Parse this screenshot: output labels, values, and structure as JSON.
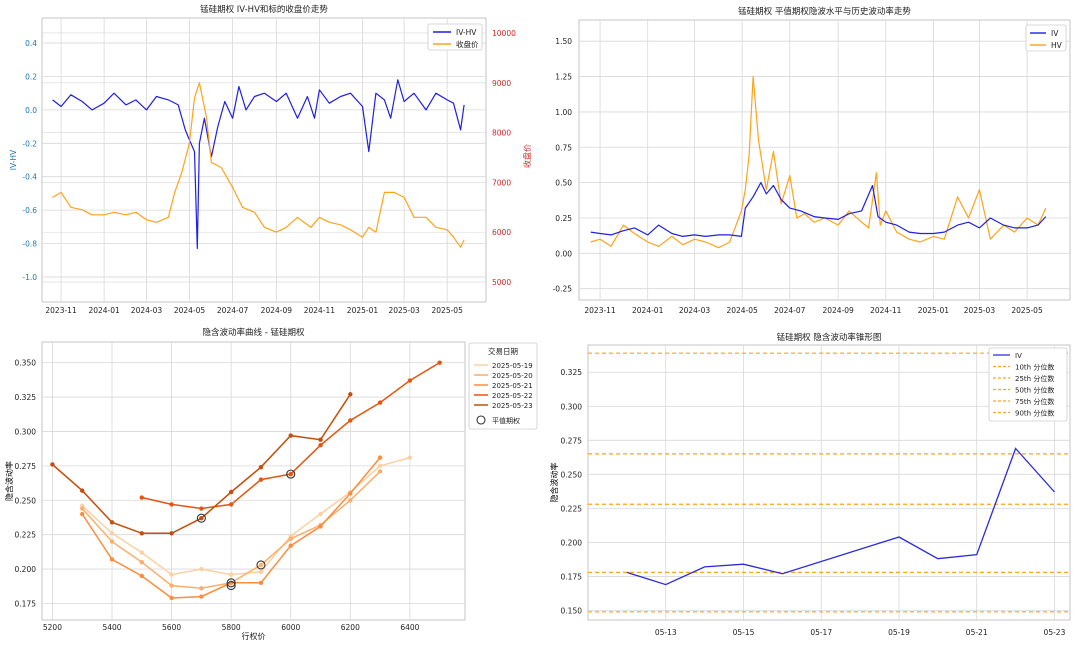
{
  "colors": {
    "blue": "#1f1fe6",
    "orange": "#ffa31a",
    "red_axis": "#d62728",
    "blue_axis": "#1f77b4",
    "grid": "#d8d8d8",
    "iv_line": "#2a2ae0",
    "pct_line": "#ffa31a",
    "date_colors": [
      "#fdd0a2",
      "#fdae6b",
      "#fd8d3c",
      "#e6550d",
      "#c44e0a"
    ]
  },
  "chart_data": [
    {
      "type": "line",
      "title": "锰硅期权 IV-HV和标的收盘价走势",
      "ylabel": "IV-HV",
      "ylabel_right": "收盘价",
      "xlim": [
        "2023-10-05",
        "2025-06-25"
      ],
      "ylim": [
        -1.15,
        0.55
      ],
      "ylim_right": [
        4600,
        10300
      ],
      "xticks": [
        "2023-11",
        "2024-01",
        "2024-03",
        "2024-05",
        "2024-07",
        "2024-09",
        "2024-11",
        "2025-01",
        "2025-03",
        "2025-05"
      ],
      "yticks": [
        "-1.0",
        "-0.8",
        "-0.6",
        "-0.4",
        "-0.2",
        "0.0",
        "0.2",
        "0.4"
      ],
      "yticks_right": [
        "5000",
        "6000",
        "7000",
        "8000",
        "9000",
        "10000"
      ],
      "legend": [
        "IV-HV",
        "收盘价"
      ],
      "series": [
        {
          "name": "IV-HV",
          "axis": "left",
          "x": [
            "2023-10-20",
            "2023-11-01",
            "2023-11-15",
            "2023-12-01",
            "2023-12-15",
            "2024-01-01",
            "2024-01-15",
            "2024-02-01",
            "2024-02-15",
            "2024-03-01",
            "2024-03-15",
            "2024-04-01",
            "2024-04-15",
            "2024-04-25",
            "2024-05-01",
            "2024-05-08",
            "2024-05-12",
            "2024-05-15",
            "2024-05-22",
            "2024-06-01",
            "2024-06-10",
            "2024-06-20",
            "2024-07-01",
            "2024-07-10",
            "2024-07-20",
            "2024-08-01",
            "2024-08-15",
            "2024-09-01",
            "2024-09-15",
            "2024-10-01",
            "2024-10-15",
            "2024-10-25",
            "2024-11-01",
            "2024-11-15",
            "2024-12-01",
            "2024-12-15",
            "2025-01-01",
            "2025-01-10",
            "2025-01-20",
            "2025-02-01",
            "2025-02-10",
            "2025-02-20",
            "2025-03-01",
            "2025-03-15",
            "2025-04-01",
            "2025-04-15",
            "2025-05-01",
            "2025-05-10",
            "2025-05-20",
            "2025-05-25"
          ],
          "y": [
            0.06,
            0.02,
            0.09,
            0.05,
            0.0,
            0.04,
            0.1,
            0.03,
            0.06,
            0.0,
            0.08,
            0.06,
            0.03,
            -0.12,
            -0.18,
            -0.25,
            -0.83,
            -0.2,
            -0.05,
            -0.28,
            -0.1,
            0.05,
            -0.05,
            0.14,
            0.0,
            0.08,
            0.1,
            0.05,
            0.1,
            -0.05,
            0.08,
            -0.05,
            0.12,
            0.04,
            0.08,
            0.1,
            0.02,
            -0.25,
            0.1,
            0.06,
            -0.05,
            0.18,
            0.05,
            0.1,
            0.0,
            0.1,
            0.06,
            0.04,
            -0.12,
            0.03
          ]
        },
        {
          "name": "收盘价",
          "axis": "right",
          "x": [
            "2023-10-20",
            "2023-11-01",
            "2023-11-15",
            "2023-12-01",
            "2023-12-15",
            "2024-01-01",
            "2024-01-15",
            "2024-02-01",
            "2024-02-15",
            "2024-03-01",
            "2024-03-15",
            "2024-04-01",
            "2024-04-10",
            "2024-04-20",
            "2024-05-01",
            "2024-05-08",
            "2024-05-15",
            "2024-05-25",
            "2024-06-01",
            "2024-06-15",
            "2024-07-01",
            "2024-07-15",
            "2024-08-01",
            "2024-08-15",
            "2024-09-01",
            "2024-09-15",
            "2024-10-01",
            "2024-10-10",
            "2024-10-20",
            "2024-11-01",
            "2024-11-15",
            "2024-12-01",
            "2024-12-15",
            "2025-01-01",
            "2025-01-10",
            "2025-01-20",
            "2025-02-01",
            "2025-02-15",
            "2025-03-01",
            "2025-03-15",
            "2025-04-01",
            "2025-04-15",
            "2025-05-01",
            "2025-05-10",
            "2025-05-20",
            "2025-05-25"
          ],
          "y": [
            6700,
            6800,
            6500,
            6450,
            6350,
            6350,
            6400,
            6350,
            6400,
            6250,
            6200,
            6300,
            6800,
            7200,
            7800,
            8700,
            9000,
            8300,
            7400,
            7300,
            6900,
            6500,
            6400,
            6100,
            6000,
            6100,
            6300,
            6200,
            6100,
            6300,
            6200,
            6150,
            6050,
            5900,
            6100,
            6000,
            6800,
            6800,
            6700,
            6300,
            6300,
            6100,
            6050,
            5900,
            5700,
            5850
          ]
        }
      ]
    },
    {
      "type": "line",
      "title": "锰硅期权 平值期权隐波水平与历史波动率走势",
      "xlim": [
        "2023-10-05",
        "2025-06-25"
      ],
      "ylim": [
        -0.33,
        1.65
      ],
      "xticks": [
        "2023-11",
        "2024-01",
        "2024-03",
        "2024-05",
        "2024-07",
        "2024-09",
        "2024-11",
        "2025-01",
        "2025-03",
        "2025-05"
      ],
      "yticks": [
        "-0.25",
        "0.00",
        "0.25",
        "0.50",
        "0.75",
        "1.00",
        "1.25",
        "1.50"
      ],
      "legend": [
        "IV",
        "HV"
      ],
      "series": [
        {
          "name": "IV",
          "x": [
            "2023-10-20",
            "2023-11-01",
            "2023-11-15",
            "2023-12-01",
            "2023-12-15",
            "2024-01-01",
            "2024-01-15",
            "2024-02-01",
            "2024-02-15",
            "2024-03-01",
            "2024-03-15",
            "2024-04-01",
            "2024-04-15",
            "2024-04-30",
            "2024-05-05",
            "2024-05-15",
            "2024-05-25",
            "2024-06-01",
            "2024-06-10",
            "2024-06-20",
            "2024-07-01",
            "2024-07-15",
            "2024-08-01",
            "2024-08-15",
            "2024-09-01",
            "2024-09-15",
            "2024-10-01",
            "2024-10-15",
            "2024-10-22",
            "2024-11-01",
            "2024-11-15",
            "2024-12-01",
            "2024-12-15",
            "2025-01-01",
            "2025-01-15",
            "2025-02-01",
            "2025-02-15",
            "2025-03-01",
            "2025-03-15",
            "2025-04-01",
            "2025-04-15",
            "2025-05-01",
            "2025-05-15",
            "2025-05-25"
          ],
          "y": [
            0.15,
            0.14,
            0.13,
            0.16,
            0.18,
            0.13,
            0.2,
            0.14,
            0.12,
            0.13,
            0.12,
            0.13,
            0.13,
            0.12,
            0.32,
            0.4,
            0.5,
            0.42,
            0.48,
            0.38,
            0.32,
            0.3,
            0.26,
            0.25,
            0.24,
            0.28,
            0.3,
            0.48,
            0.26,
            0.22,
            0.2,
            0.15,
            0.14,
            0.14,
            0.15,
            0.2,
            0.22,
            0.18,
            0.25,
            0.2,
            0.18,
            0.18,
            0.2,
            0.26
          ]
        },
        {
          "name": "HV",
          "x": [
            "2023-10-20",
            "2023-11-01",
            "2023-11-15",
            "2023-12-01",
            "2023-12-15",
            "2024-01-01",
            "2024-01-15",
            "2024-02-01",
            "2024-02-15",
            "2024-03-01",
            "2024-03-15",
            "2024-04-01",
            "2024-04-15",
            "2024-04-30",
            "2024-05-05",
            "2024-05-10",
            "2024-05-15",
            "2024-05-22",
            "2024-06-01",
            "2024-06-10",
            "2024-06-20",
            "2024-07-01",
            "2024-07-10",
            "2024-07-20",
            "2024-08-01",
            "2024-08-15",
            "2024-09-01",
            "2024-09-15",
            "2024-10-01",
            "2024-10-10",
            "2024-10-20",
            "2024-10-25",
            "2024-11-01",
            "2024-11-15",
            "2024-12-01",
            "2024-12-15",
            "2025-01-01",
            "2025-01-15",
            "2025-02-01",
            "2025-02-15",
            "2025-03-01",
            "2025-03-15",
            "2025-04-01",
            "2025-04-15",
            "2025-05-01",
            "2025-05-15",
            "2025-05-25"
          ],
          "y": [
            0.08,
            0.1,
            0.05,
            0.2,
            0.14,
            0.08,
            0.05,
            0.12,
            0.06,
            0.1,
            0.08,
            0.04,
            0.08,
            0.3,
            0.45,
            0.7,
            1.25,
            0.8,
            0.45,
            0.72,
            0.35,
            0.55,
            0.25,
            0.28,
            0.22,
            0.25,
            0.2,
            0.3,
            0.22,
            0.18,
            0.57,
            0.2,
            0.3,
            0.15,
            0.1,
            0.08,
            0.12,
            0.1,
            0.4,
            0.25,
            0.45,
            0.1,
            0.2,
            0.15,
            0.25,
            0.2,
            0.32
          ]
        }
      ]
    },
    {
      "type": "line",
      "title": "隐含波动率曲线 - 锰硅期权",
      "xlabel": "行权价",
      "ylabel": "隐含波动率",
      "xlim": [
        5165,
        6585
      ],
      "ylim": [
        0.163,
        0.365
      ],
      "xticks": [
        "5200",
        "5400",
        "5600",
        "5800",
        "6000",
        "6200",
        "6400"
      ],
      "yticks": [
        "0.175",
        "0.200",
        "0.225",
        "0.250",
        "0.275",
        "0.300",
        "0.325",
        "0.350"
      ],
      "legend_title": "交易日期",
      "legend": [
        "2025-05-19",
        "2025-05-20",
        "2025-05-21",
        "2025-05-22",
        "2025-05-23",
        "平值期权"
      ],
      "series": [
        {
          "name": "2025-05-19",
          "x": [
            5300,
            5400,
            5500,
            5600,
            5700,
            5800,
            5900,
            6000,
            6100,
            6200,
            6300,
            6400
          ],
          "y": [
            0.246,
            0.226,
            0.212,
            0.196,
            0.2,
            0.196,
            0.198,
            0.224,
            0.24,
            0.256,
            0.275,
            0.281
          ]
        },
        {
          "name": "2025-05-20",
          "x": [
            5300,
            5400,
            5500,
            5600,
            5700,
            5800,
            5900,
            6000,
            6100,
            6200,
            6300
          ],
          "y": [
            0.244,
            0.22,
            0.205,
            0.188,
            0.186,
            0.19,
            0.203,
            0.222,
            0.232,
            0.25,
            0.271
          ]
        },
        {
          "name": "2025-05-21",
          "x": [
            5300,
            5400,
            5500,
            5600,
            5700,
            5800,
            5900,
            6000,
            6100,
            6200,
            6300
          ],
          "y": [
            0.24,
            0.207,
            0.195,
            0.179,
            0.18,
            0.19,
            0.19,
            0.217,
            0.231,
            0.255,
            0.281
          ]
        },
        {
          "name": "2025-05-22",
          "x": [
            5500,
            5600,
            5700,
            5800,
            5900,
            6000,
            6100,
            6200,
            6300,
            6400,
            6500
          ],
          "y": [
            0.252,
            0.247,
            0.244,
            0.247,
            0.265,
            0.269,
            0.29,
            0.308,
            0.321,
            0.337,
            0.35
          ]
        },
        {
          "name": "2025-05-23",
          "x": [
            5200,
            5300,
            5400,
            5500,
            5600,
            5700,
            5800,
            5900,
            6000,
            6100,
            6200
          ],
          "y": [
            0.276,
            0.257,
            0.234,
            0.226,
            0.226,
            0.237,
            0.256,
            0.274,
            0.297,
            0.294,
            0.327
          ]
        }
      ],
      "atm_points": [
        {
          "x": 5700,
          "y": 0.237
        },
        {
          "x": 5800,
          "y": 0.188
        },
        {
          "x": 5800,
          "y": 0.19
        },
        {
          "x": 5900,
          "y": 0.203
        },
        {
          "x": 6000,
          "y": 0.269
        }
      ]
    },
    {
      "type": "line",
      "title": "锰硅期权 隐含波动率锥形图",
      "ylabel": "隐含波动率",
      "xlim": [
        "2025-05-11",
        "2025-05-23.4"
      ],
      "ylim": [
        0.143,
        0.345
      ],
      "xticks": [
        "05-13",
        "05-15",
        "05-17",
        "05-19",
        "05-21",
        "05-23"
      ],
      "yticks": [
        "0.150",
        "0.175",
        "0.200",
        "0.225",
        "0.250",
        "0.275",
        "0.300",
        "0.325"
      ],
      "legend": [
        "IV",
        "10th 分位数",
        "25th 分位数",
        "50th 分位数",
        "75th 分位数",
        "90th 分位数"
      ],
      "series": [
        {
          "name": "IV",
          "x": [
            "2025-05-12",
            "2025-05-13",
            "2025-05-14",
            "2025-05-15",
            "2025-05-16",
            "2025-05-19",
            "2025-05-20",
            "2025-05-21",
            "2025-05-22",
            "2025-05-23"
          ],
          "y": [
            0.178,
            0.169,
            0.182,
            0.184,
            0.177,
            0.204,
            0.188,
            0.191,
            0.269,
            0.237
          ]
        }
      ],
      "percentiles": [
        {
          "name": "10th 分位数",
          "y": 0.149
        },
        {
          "name": "25th 分位数",
          "y": 0.178
        },
        {
          "name": "50th 分位数",
          "y": 0.228
        },
        {
          "name": "75th 分位数",
          "y": 0.265
        },
        {
          "name": "90th 分位数",
          "y": 0.339
        }
      ]
    }
  ]
}
